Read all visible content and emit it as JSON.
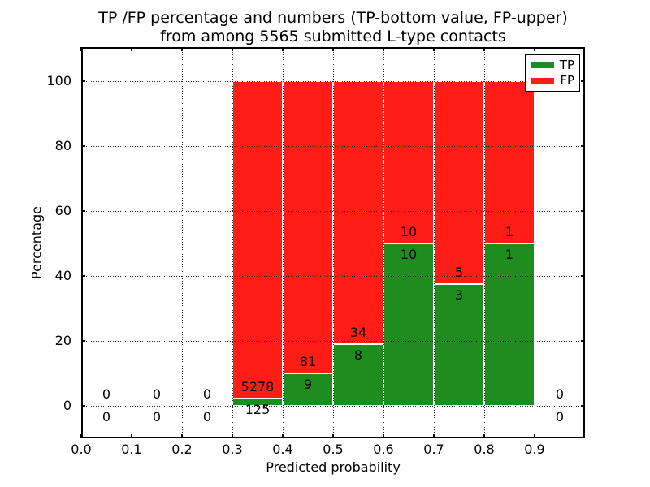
{
  "title": {
    "line1": "TP /FP percentage and numbers (TP-bottom value, FP-upper)",
    "line2": "from among 5565 submitted L-type contacts"
  },
  "chart_data": {
    "type": "bar",
    "stacked": true,
    "title": "TP /FP percentage and numbers (TP-bottom value, FP-upper)\nfrom among 5565 submitted L-type contacts",
    "xlabel": "Predicted probability",
    "ylabel": "Percentage",
    "x_ticks": [
      "0.0",
      "0.1",
      "0.2",
      "0.3",
      "0.4",
      "0.5",
      "0.6",
      "0.7",
      "0.8",
      "0.9"
    ],
    "y_ticks": [
      0,
      20,
      40,
      60,
      80,
      100
    ],
    "xlim": [
      0.0,
      1.0
    ],
    "ylim": [
      -10.5,
      110.5
    ],
    "grid": "dotted",
    "axisbelow": false,
    "bar_height_meaning": "green bar height = TP percentage of bin total, red fills to 100%",
    "legend": {
      "position": "upper right",
      "entries": [
        {
          "label": "TP",
          "color": "#1e8c1e"
        },
        {
          "label": "FP",
          "color": "#ff1d16"
        }
      ]
    },
    "bins": [
      {
        "range": [
          0.0,
          0.1
        ],
        "tp": 0,
        "fp": 0,
        "tp_pct": null
      },
      {
        "range": [
          0.1,
          0.2
        ],
        "tp": 0,
        "fp": 0,
        "tp_pct": null
      },
      {
        "range": [
          0.2,
          0.3
        ],
        "tp": 0,
        "fp": 0,
        "tp_pct": null
      },
      {
        "range": [
          0.3,
          0.4
        ],
        "tp": 125,
        "fp": 5278,
        "tp_pct": 2.3
      },
      {
        "range": [
          0.4,
          0.5
        ],
        "tp": 9,
        "fp": 81,
        "tp_pct": 10.0
      },
      {
        "range": [
          0.5,
          0.6
        ],
        "tp": 8,
        "fp": 34,
        "tp_pct": 19.0
      },
      {
        "range": [
          0.6,
          0.7
        ],
        "tp": 10,
        "fp": 10,
        "tp_pct": 50.0
      },
      {
        "range": [
          0.7,
          0.8
        ],
        "tp": 3,
        "fp": 5,
        "tp_pct": 37.5
      },
      {
        "range": [
          0.8,
          0.9
        ],
        "tp": 1,
        "fp": 1,
        "tp_pct": 50.0
      },
      {
        "range": [
          0.9,
          1.0
        ],
        "tp": 0,
        "fp": 0,
        "tp_pct": null
      }
    ]
  }
}
